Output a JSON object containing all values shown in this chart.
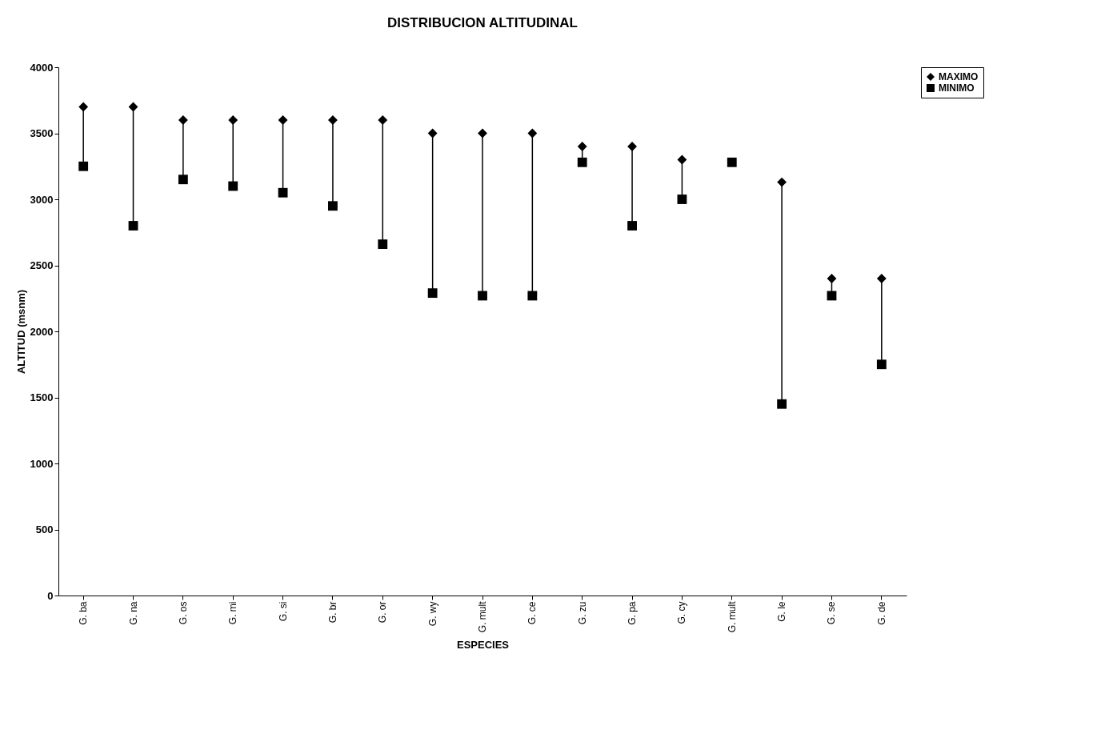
{
  "chart_data": {
    "type": "scatter",
    "title": "DISTRIBUCION ALTITUDINAL",
    "xlabel": "ESPECIES",
    "ylabel": "ALTITUD (msnm)",
    "categories": [
      "G. ba",
      "G. na",
      "G. os",
      "G. mi",
      "G. si",
      "G. br",
      "G. or",
      "G. wy",
      "G. mult",
      "G. ce",
      "G. zu",
      "G. pa",
      "G. cy",
      "G. mult",
      "G. le",
      "G. se",
      "G. de"
    ],
    "series": [
      {
        "name": "MAXIMO",
        "color": "#000000",
        "marker": "diamond",
        "values": [
          3700,
          3700,
          3600,
          3600,
          3600,
          3600,
          3600,
          3500,
          3500,
          3500,
          3400,
          3400,
          3300,
          null,
          3130,
          2400,
          2400
        ]
      },
      {
        "name": "MINIMO",
        "color": "#000000",
        "marker": "square",
        "values": [
          3250,
          2800,
          3150,
          3100,
          3050,
          2950,
          2660,
          2290,
          2270,
          2270,
          3280,
          2800,
          3000,
          3280,
          1450,
          2270,
          1750
        ]
      }
    ],
    "ylim": [
      0,
      4000
    ],
    "yticks": [
      0,
      500,
      1000,
      1500,
      2000,
      2500,
      3000,
      3500,
      4000
    ],
    "grid": false,
    "legend": "right"
  }
}
